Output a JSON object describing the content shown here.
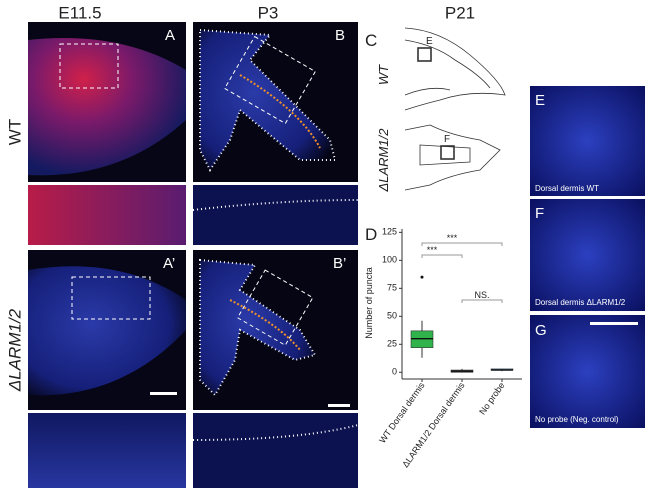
{
  "column_headers": [
    "E11.5",
    "P3",
    "P21"
  ],
  "row_labels": [
    "WT",
    "ΔLARM1/2"
  ],
  "panel_labels": {
    "A": "A",
    "B": "B",
    "A_prime": "A’",
    "B_prime": "B’",
    "C": "C",
    "D": "D",
    "E": "E",
    "F": "F",
    "G": "G"
  },
  "schematic": {
    "labels": [
      "WT",
      "ΔLARM1/2"
    ],
    "box_labels": [
      "E",
      "F"
    ]
  },
  "inset_captions": [
    "Dorsal dermis WT",
    "Dorsal dermis ΔLARM1/2",
    "No probe (Neg. control)"
  ],
  "chart_data": {
    "type": "box",
    "y_label": "Number of puncta",
    "categories": [
      "WT Dorsal dermis",
      "ΔLARM1/2 Dorsal dermis",
      "No probe"
    ],
    "series": [
      {
        "name": "WT Dorsal dermis",
        "color": "#2fb34a",
        "min": 13,
        "q1": 22,
        "median": 30,
        "q3": 37,
        "max": 46,
        "outliers": [
          85
        ]
      },
      {
        "name": "ΔLARM1/2 Dorsal dermis",
        "color": "#555555",
        "min": 0,
        "q1": 0,
        "median": 1,
        "q3": 2,
        "max": 3,
        "outliers": []
      },
      {
        "name": "No probe",
        "color": "#3a6fc0",
        "min": 1,
        "q1": 2,
        "median": 2,
        "q3": 3,
        "max": 3,
        "outliers": []
      }
    ],
    "annotations": [
      "***",
      "***",
      "NS."
    ],
    "ylim": [
      -6,
      128
    ],
    "yticks": [
      0,
      25,
      50,
      75,
      100,
      125
    ]
  }
}
